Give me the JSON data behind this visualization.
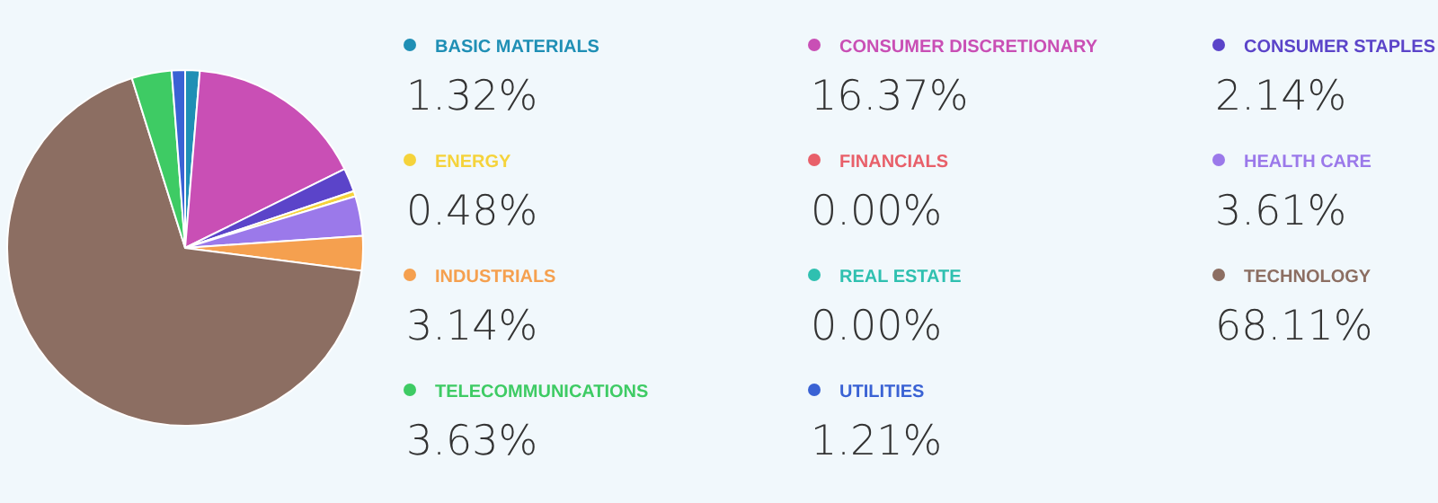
{
  "chart_data": {
    "type": "pie",
    "categories": [
      "BASIC MATERIALS",
      "CONSUMER DISCRETIONARY",
      "CONSUMER STAPLES",
      "ENERGY",
      "FINANCIALS",
      "HEALTH CARE",
      "INDUSTRIALS",
      "REAL ESTATE",
      "TECHNOLOGY",
      "TELECOMMUNICATIONS",
      "UTILITIES"
    ],
    "values": [
      1.32,
      16.37,
      2.14,
      0.48,
      0.0,
      3.61,
      3.14,
      0.0,
      68.11,
      3.63,
      1.21
    ],
    "value_labels": [
      "1.32%",
      "16.37%",
      "2.14%",
      "0.48%",
      "0.00%",
      "3.61%",
      "3.14%",
      "0.00%",
      "68.11%",
      "3.63%",
      "1.21%"
    ],
    "colors": [
      "#1f8fb5",
      "#c94fb5",
      "#5b44c9",
      "#f5d33b",
      "#e8606a",
      "#9b79ea",
      "#f5a04f",
      "#2fc0b0",
      "#8c6e62",
      "#3ecb64",
      "#3a62d4"
    ],
    "legend": "right"
  }
}
